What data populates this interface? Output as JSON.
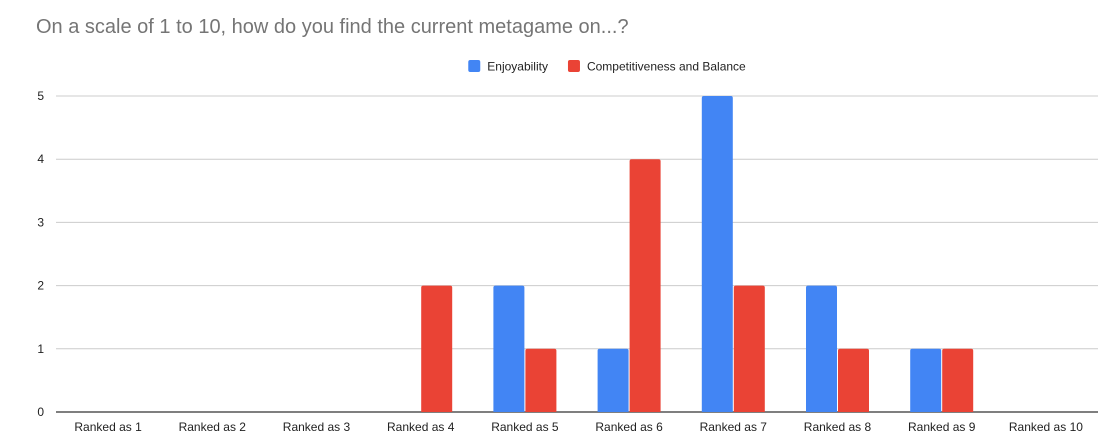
{
  "chart_data": {
    "type": "bar",
    "title": "On a scale of 1 to 10, how do you find the current metagame on...?",
    "xlabel": "",
    "ylabel": "",
    "categories": [
      "Ranked as 1",
      "Ranked as 2",
      "Ranked as 3",
      "Ranked as 4",
      "Ranked as 5",
      "Ranked as 6",
      "Ranked as 7",
      "Ranked as 8",
      "Ranked as 9",
      "Ranked as 10"
    ],
    "series": [
      {
        "name": "Enjoyability",
        "color": "#4285F4",
        "values": [
          0,
          0,
          0,
          0,
          2,
          1,
          5,
          2,
          1,
          0
        ]
      },
      {
        "name": "Competitiveness and Balance",
        "color": "#EA4335",
        "values": [
          0,
          0,
          0,
          2,
          1,
          4,
          2,
          1,
          1,
          0
        ]
      }
    ],
    "ylim": [
      0,
      5
    ],
    "yticks": [
      0,
      1,
      2,
      3,
      4,
      5
    ],
    "grid": true,
    "legend": "top-center"
  }
}
